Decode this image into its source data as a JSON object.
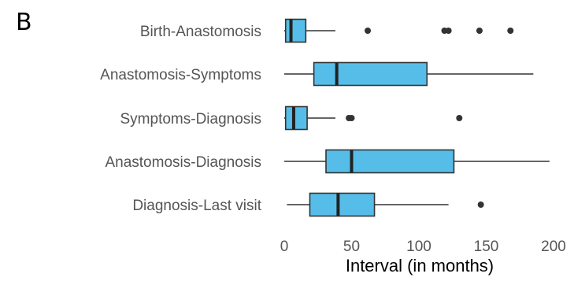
{
  "panel_label": "B",
  "colors": {
    "box_fill": "#56bde8",
    "line": "#333333",
    "text": "#555555"
  },
  "chart_data": {
    "type": "boxplot",
    "orientation": "horizontal",
    "xlabel": "Interval (in months)",
    "xlim": [
      0,
      200
    ],
    "xticks": [
      0,
      50,
      100,
      150,
      200
    ],
    "grid": false,
    "categories": [
      "Birth-Anastomosis",
      "Anastomosis-Symptoms",
      "Symptoms-Diagnosis",
      "Anastomosis-Diagnosis",
      "Diagnosis-Last visit"
    ],
    "boxes": [
      {
        "label": "Birth-Anastomosis",
        "whisker_low": 0,
        "q1": 1,
        "median": 5,
        "q3": 16,
        "whisker_high": 38,
        "outliers": [
          62,
          119,
          122,
          145,
          168
        ]
      },
      {
        "label": "Anastomosis-Symptoms",
        "whisker_low": 0,
        "q1": 22,
        "median": 39,
        "q3": 106,
        "whisker_high": 185,
        "outliers": []
      },
      {
        "label": "Symptoms-Diagnosis",
        "whisker_low": 0,
        "q1": 1,
        "median": 7,
        "q3": 17,
        "whisker_high": 38,
        "outliers": [
          48,
          50,
          130
        ]
      },
      {
        "label": "Anastomosis-Diagnosis",
        "whisker_low": 0,
        "q1": 31,
        "median": 50,
        "q3": 126,
        "whisker_high": 197,
        "outliers": []
      },
      {
        "label": "Diagnosis-Last visit",
        "whisker_low": 2,
        "q1": 19,
        "median": 40,
        "q3": 67,
        "whisker_high": 122,
        "outliers": [
          146
        ]
      }
    ]
  }
}
